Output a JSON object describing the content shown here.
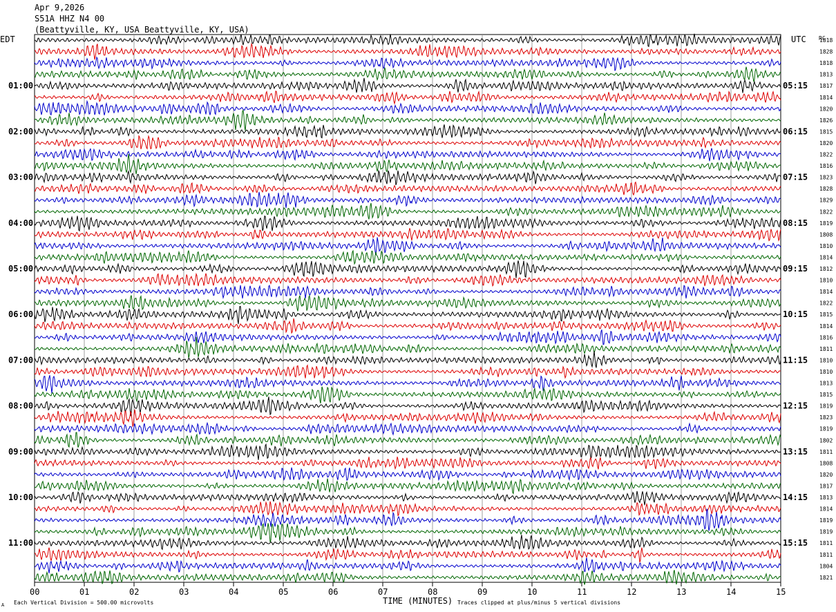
{
  "header": {
    "date": "Apr 9,2026",
    "station": "S51A HHZ N4 00",
    "location": "(Beattyville, KY, USA Beattyville, KY, USA)"
  },
  "labels": {
    "left_zone": "EDT",
    "right_zone": "UTC",
    "rc": "RC",
    "xlabel": "TIME (MINUTES)",
    "scale_note": "Each Vertical Division =  500.00 microvolts",
    "clip_note": "Traces clipped at plus/minus 5 vertical divisions"
  },
  "chart_data": {
    "type": "line",
    "title": "S51A HHZ N4 00",
    "xlabel": "TIME (MINUTES)",
    "xlim": [
      0,
      15
    ],
    "x_ticks": [
      "00",
      "01",
      "02",
      "03",
      "04",
      "05",
      "06",
      "07",
      "08",
      "09",
      "10",
      "11",
      "12",
      "13",
      "14",
      "15"
    ],
    "trace_minutes": 15,
    "trace_count": 48,
    "trace_colors": [
      "#000000",
      "#dd0000",
      "#0000cc",
      "#006600"
    ],
    "left_hour_labels": [
      "01:00",
      "02:00",
      "03:00",
      "04:00",
      "05:00",
      "06:00",
      "07:00",
      "08:00",
      "09:00",
      "10:00",
      "11:00"
    ],
    "right_hour_labels": [
      "05:15",
      "06:15",
      "07:15",
      "08:15",
      "09:15",
      "10:15",
      "11:15",
      "12:15",
      "13:15",
      "14:15",
      "15:15"
    ],
    "rc_values": [
      1818,
      1828,
      1818,
      1813,
      1817,
      1814,
      1820,
      1826,
      1815,
      1820,
      1822,
      1816,
      1823,
      1828,
      1829,
      1822,
      1819,
      1808,
      1810,
      1814,
      1812,
      1810,
      1814,
      1822,
      1815,
      1814,
      1816,
      1811,
      1810,
      1810,
      1813,
      1815,
      1819,
      1823,
      1819,
      1802,
      1811,
      1808,
      1820,
      1817,
      1813,
      1814,
      1819,
      1819,
      1811,
      1811,
      1804,
      1821
    ],
    "units": "microvolts",
    "vertical_division": 500.0
  }
}
